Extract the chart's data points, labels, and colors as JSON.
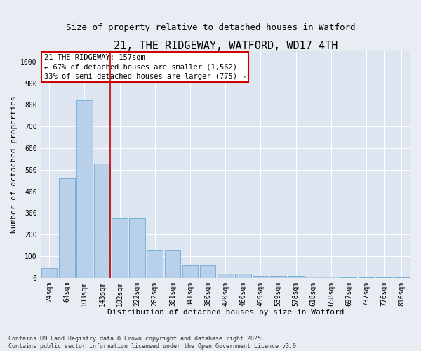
{
  "title": "21, THE RIDGEWAY, WATFORD, WD17 4TH",
  "subtitle": "Size of property relative to detached houses in Watford",
  "xlabel": "Distribution of detached houses by size in Watford",
  "ylabel": "Number of detached properties",
  "categories": [
    "24sqm",
    "64sqm",
    "103sqm",
    "143sqm",
    "182sqm",
    "222sqm",
    "262sqm",
    "301sqm",
    "341sqm",
    "380sqm",
    "420sqm",
    "460sqm",
    "499sqm",
    "539sqm",
    "578sqm",
    "618sqm",
    "658sqm",
    "697sqm",
    "737sqm",
    "776sqm",
    "816sqm"
  ],
  "values": [
    45,
    462,
    820,
    527,
    275,
    275,
    130,
    130,
    58,
    58,
    20,
    20,
    10,
    10,
    8,
    5,
    5,
    3,
    2,
    2,
    2
  ],
  "bar_color": "#b8d0ea",
  "bar_edge_color": "#6aaad4",
  "vline_color": "#cc0000",
  "vline_x_index": 3,
  "annotation_text": "21 THE RIDGEWAY: 157sqm\n← 67% of detached houses are smaller (1,562)\n33% of semi-detached houses are larger (775) →",
  "annotation_border_color": "#cc0000",
  "footer_text": "Contains HM Land Registry data © Crown copyright and database right 2025.\nContains public sector information licensed under the Open Government Licence v3.0.",
  "bg_color": "#e8edf4",
  "plot_bg_color": "#dce5f0",
  "grid_color": "#ffffff",
  "ylim": [
    0,
    1050
  ],
  "yticks": [
    0,
    100,
    200,
    300,
    400,
    500,
    600,
    700,
    800,
    900,
    1000
  ],
  "title_fontsize": 11,
  "subtitle_fontsize": 9,
  "axis_label_fontsize": 8,
  "tick_fontsize": 7,
  "annotation_fontsize": 7.5,
  "footer_fontsize": 6
}
